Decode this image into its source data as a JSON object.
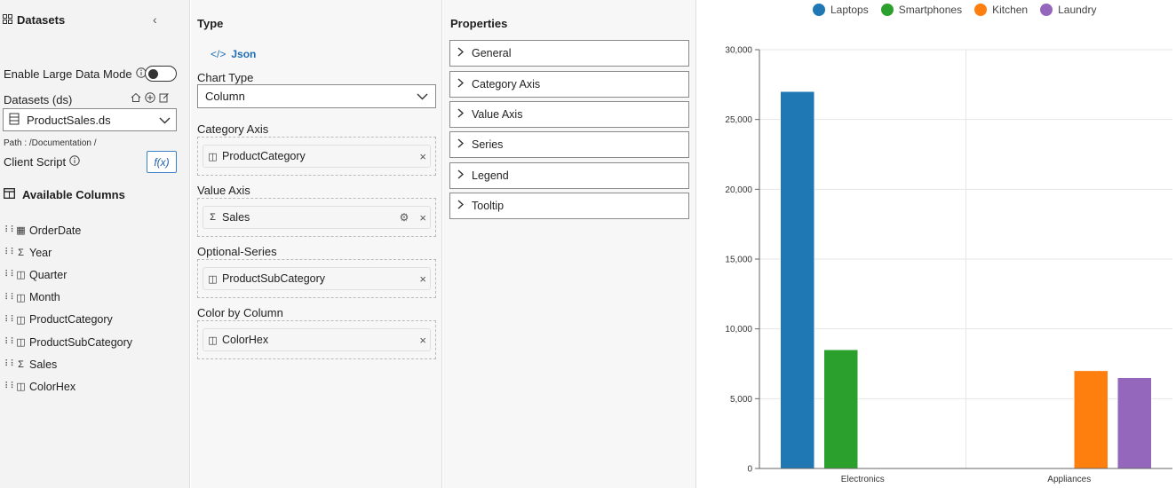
{
  "datasets_panel": {
    "title": "Datasets",
    "large_data_label": "Enable Large Data Mode",
    "datasets_label": "Datasets (ds)",
    "selected_dataset": "ProductSales.ds",
    "path_text": "Path : /Documentation /",
    "client_script_label": "Client Script",
    "fx_label": "f(x)",
    "available_columns_title": "Available Columns",
    "columns": [
      {
        "name": "OrderDate",
        "icon": "calendar-icon"
      },
      {
        "name": "Year",
        "icon": "sum-icon"
      },
      {
        "name": "Quarter",
        "icon": "table-icon"
      },
      {
        "name": "Month",
        "icon": "table-icon"
      },
      {
        "name": "ProductCategory",
        "icon": "table-icon"
      },
      {
        "name": "ProductSubCategory",
        "icon": "table-icon"
      },
      {
        "name": "Sales",
        "icon": "sum-icon"
      },
      {
        "name": "ColorHex",
        "icon": "table-icon"
      }
    ]
  },
  "type_panel": {
    "title": "Type",
    "json_label": "Json",
    "chart_type_label": "Chart Type",
    "chart_type_value": "Column",
    "category_axis_label": "Category Axis",
    "category_axis_field": "ProductCategory",
    "value_axis_label": "Value Axis",
    "value_axis_field": "Sales",
    "optional_series_label": "Optional-Series",
    "optional_series_field": "ProductSubCategory",
    "color_by_label": "Color by Column",
    "color_by_field": "ColorHex"
  },
  "properties_panel": {
    "title": "Properties",
    "sections": [
      "General",
      "Category Axis",
      "Value Axis",
      "Series",
      "Legend",
      "Tooltip"
    ]
  },
  "chart_data": {
    "type": "bar",
    "categories": [
      "Electronics",
      "Appliances"
    ],
    "series": [
      {
        "name": "Laptops",
        "color": "#1f77b4",
        "values": [
          27000,
          null
        ]
      },
      {
        "name": "Smartphones",
        "color": "#2ca02c",
        "values": [
          8500,
          null
        ]
      },
      {
        "name": "Kitchen",
        "color": "#ff7f0e",
        "values": [
          null,
          7000
        ]
      },
      {
        "name": "Laundry",
        "color": "#9467bd",
        "values": [
          null,
          6500
        ]
      }
    ],
    "ylim": [
      0,
      30000
    ],
    "yticks": [
      "0",
      "5,000",
      "10,000",
      "15,000",
      "20,000",
      "25,000",
      "30,000"
    ],
    "grid": true,
    "legend_position": "top"
  }
}
